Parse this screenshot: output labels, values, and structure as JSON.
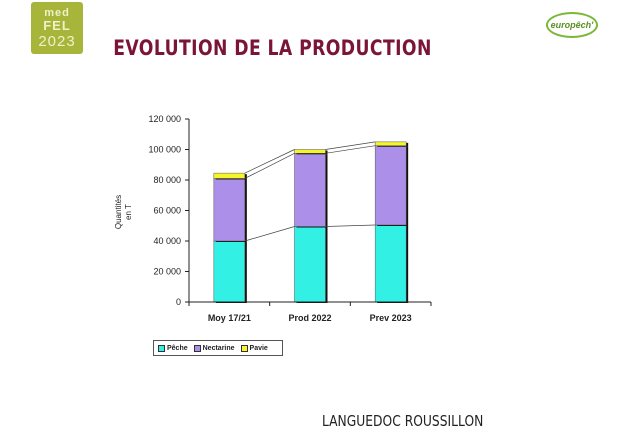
{
  "logos": {
    "medfel": {
      "line1": "med",
      "line2": "FEL",
      "line3": "2023",
      "color": "#a7b53a"
    },
    "europech": {
      "text": "europêch'",
      "color": "#5b8f24"
    }
  },
  "page": {
    "title": "EVOLUTION DE LA PRODUCTION",
    "footer": "LANGUEDOC ROUSSILLON"
  },
  "chart_data": {
    "type": "bar",
    "stacked": true,
    "categories": [
      "Moy 17/21",
      "Prod 2022",
      "Prev 2023"
    ],
    "series": [
      {
        "name": "Pêche",
        "values": [
          40000,
          49500,
          50500
        ],
        "color": "#33f0e4"
      },
      {
        "name": "Nectarine",
        "values": [
          41000,
          48000,
          52000
        ],
        "color": "#ab8fe8"
      },
      {
        "name": "Pavie",
        "values": [
          3500,
          2500,
          2500
        ],
        "color": "#f7f52a"
      }
    ],
    "ylabel": "Quantités en T",
    "ylim": [
      0,
      120000
    ],
    "yticks": [
      "120 000",
      "100 000",
      "80 000",
      "60 000",
      "40 000",
      "20 000",
      "0"
    ],
    "connector_lines": true,
    "legend_position": "bottom-left"
  }
}
